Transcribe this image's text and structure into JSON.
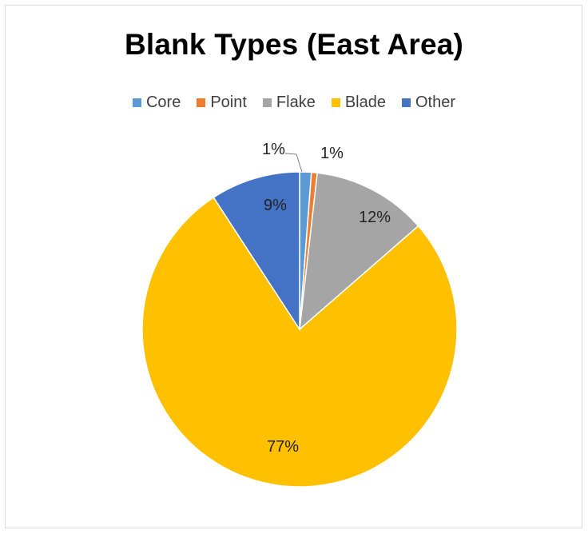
{
  "chart_data": {
    "type": "pie",
    "title": "Blank Types (East Area)",
    "categories": [
      "Core",
      "Point",
      "Flake",
      "Blade",
      "Other"
    ],
    "values": [
      1.2,
      0.6,
      11.8,
      77.2,
      9.2
    ],
    "labels": [
      "1%",
      "1%",
      "12%",
      "77%",
      "9%"
    ],
    "colors": [
      "#5b9bd5",
      "#ed7d31",
      "#a5a5a5",
      "#ffc000",
      "#4472c4"
    ],
    "legend_position": "top"
  }
}
